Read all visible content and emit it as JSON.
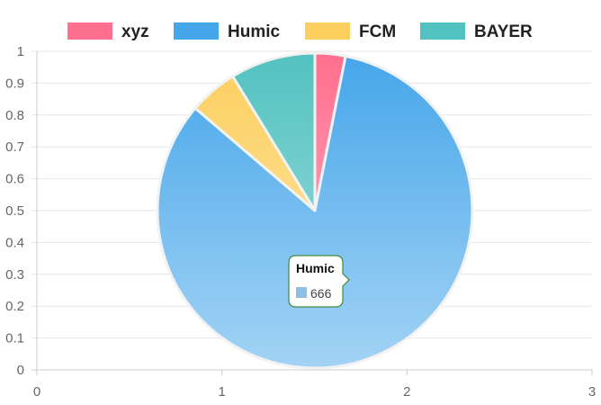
{
  "chart_data": {
    "type": "pie",
    "labels": [
      "xyz",
      "Humic",
      "FCM",
      "BAYER"
    ],
    "values": [
      25,
      666,
      40,
      70
    ],
    "colors": [
      "#ff6f8f",
      "#46a6ea",
      "#fccf5e",
      "#52c2c0"
    ],
    "legend_position": "top",
    "x_axis": {
      "min": 0,
      "max": 3,
      "ticks": [
        "0",
        "1",
        "2",
        "3"
      ]
    },
    "y_axis": {
      "min": 0,
      "max": 1,
      "ticks": [
        "0",
        "0.1",
        "0.2",
        "0.3",
        "0.4",
        "0.5",
        "0.6",
        "0.7",
        "0.8",
        "0.9",
        "1"
      ]
    },
    "grid": true,
    "tooltip": {
      "title": "Humic",
      "value": "666",
      "color": "#8fbfe3"
    }
  }
}
